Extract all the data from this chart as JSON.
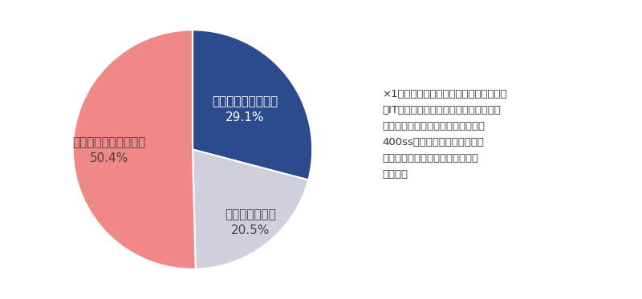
{
  "slices": [
    29.1,
    20.5,
    50.4
  ],
  "slice_labels": [
    "教育を実施している",
    "良くわからない",
    "教育を実施していない"
  ],
  "slice_pcts": [
    "29.1%",
    "20.5%",
    "50.4%"
  ],
  "colors": [
    "#2d4b8c",
    "#d0d0dc",
    "#f08888"
  ],
  "startangle": 90,
  "note_line1": "×1上図は、今回調査した「メーカー」、",
  "note_line2": "「IT・通信系」、「流通小売」、「サー",
  "note_line3": "ビス業」、「医療」、「公務」の各",
  "note_line4": "400ssの合計の割合のため、全",
  "note_line5": "業種の平均ではないことに留意さ",
  "note_line6": "れたい。",
  "bg_color": "#ffffff",
  "label_fontsize": 11,
  "pct_fontsize": 11,
  "note_fontsize": 9.5
}
